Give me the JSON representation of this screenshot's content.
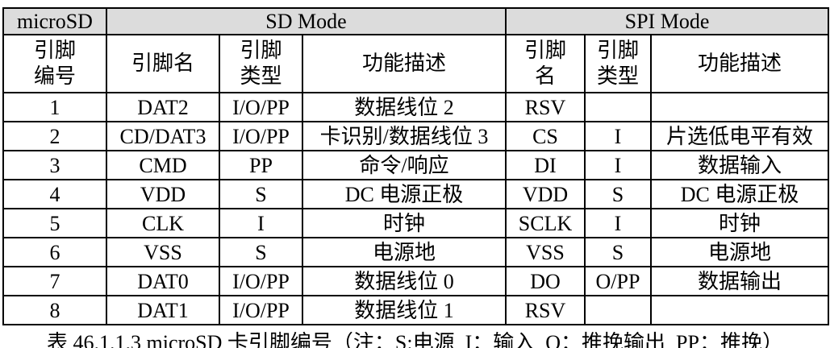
{
  "table": {
    "header_bg_color": "#dcdcdc",
    "border_color": "#000000",
    "mode_header": {
      "corner": "microSD",
      "sd": "SD Mode",
      "spi": "SPI Mode"
    },
    "column_header": {
      "pin_no": "引脚\n编号",
      "sd_name": "引脚名",
      "sd_type": "引脚\n类型",
      "sd_desc": "功能描述",
      "spi_name": "引脚\n名",
      "spi_type": "引脚\n类型",
      "spi_desc": "功能描述"
    },
    "rows": [
      {
        "no": "1",
        "sd_name": "DAT2",
        "sd_type": "I/O/PP",
        "sd_desc": "数据线位 2",
        "spi_name": "RSV",
        "spi_type": "",
        "spi_desc": ""
      },
      {
        "no": "2",
        "sd_name": "CD/DAT3",
        "sd_type": "I/O/PP",
        "sd_desc": "卡识别/数据线位 3",
        "spi_name": "CS",
        "spi_type": "I",
        "spi_desc": "片选低电平有效"
      },
      {
        "no": "3",
        "sd_name": "CMD",
        "sd_type": "PP",
        "sd_desc": "命令/响应",
        "spi_name": "DI",
        "spi_type": "I",
        "spi_desc": "数据输入"
      },
      {
        "no": "4",
        "sd_name": "VDD",
        "sd_type": "S",
        "sd_desc": "DC 电源正极",
        "spi_name": "VDD",
        "spi_type": "S",
        "spi_desc": "DC 电源正极"
      },
      {
        "no": "5",
        "sd_name": "CLK",
        "sd_type": "I",
        "sd_desc": "时钟",
        "spi_name": "SCLK",
        "spi_type": "I",
        "spi_desc": "时钟"
      },
      {
        "no": "6",
        "sd_name": "VSS",
        "sd_type": "S",
        "sd_desc": "电源地",
        "spi_name": "VSS",
        "spi_type": "S",
        "spi_desc": "电源地"
      },
      {
        "no": "7",
        "sd_name": "DAT0",
        "sd_type": "I/O/PP",
        "sd_desc": "数据线位 0",
        "spi_name": "DO",
        "spi_type": "O/PP",
        "spi_desc": "数据输出"
      },
      {
        "no": "8",
        "sd_name": "DAT1",
        "sd_type": "I/O/PP",
        "sd_desc": "数据线位 1",
        "spi_name": "RSV",
        "spi_type": "",
        "spi_desc": ""
      }
    ]
  },
  "caption": "表 46.1.1.3 microSD 卡引脚编号（注：S:电源  I：输入  O：推挽输出  PP：推挽）"
}
